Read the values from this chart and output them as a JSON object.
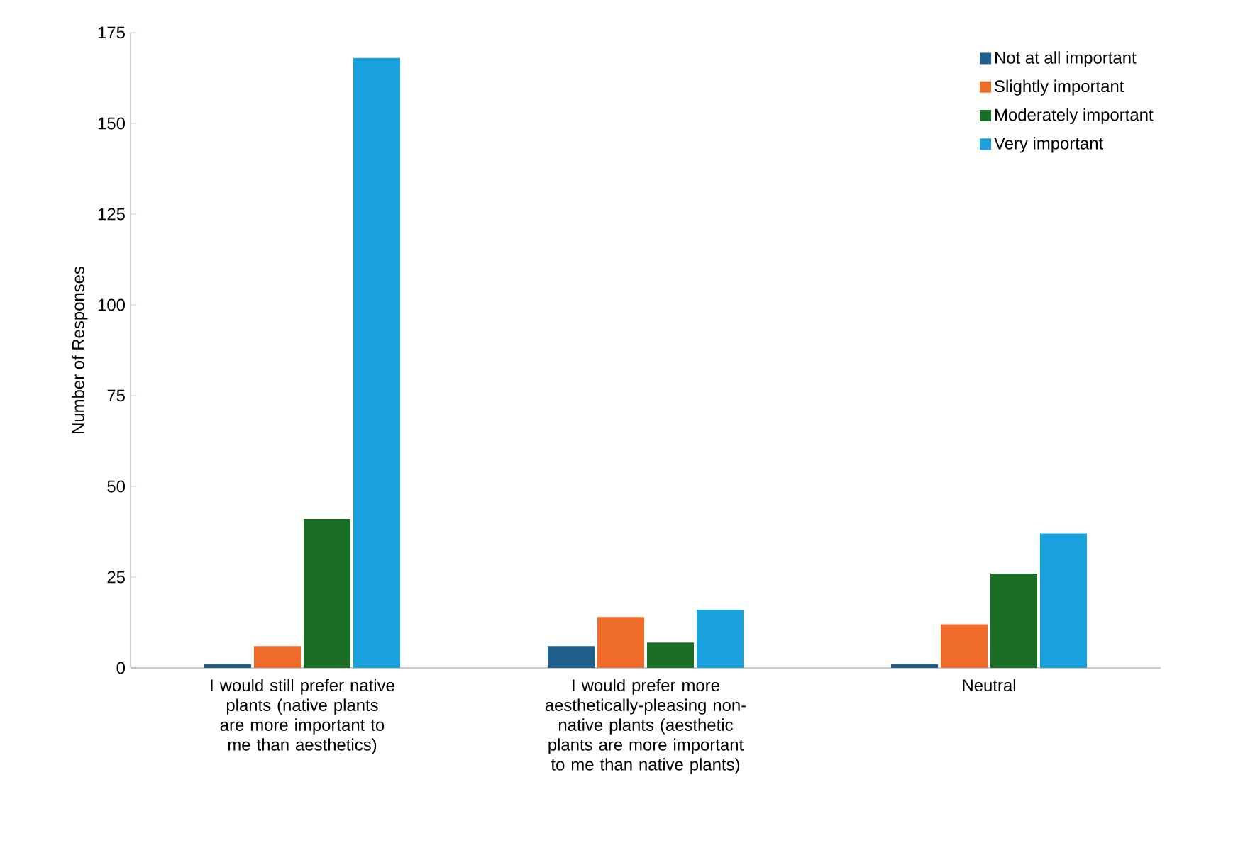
{
  "chart_data": {
    "type": "bar",
    "ylabel": "Number of Responses",
    "categories": [
      "I would still prefer native plants (native plants are more important to me than aesthetics)",
      "I would prefer more aesthetically-pleasing non-native plants (aesthetic plants are more important to me than native plants)",
      "Neutral"
    ],
    "series": [
      {
        "name": "Not at all important",
        "color": "#1f5f8b",
        "values": [
          1,
          6,
          1
        ]
      },
      {
        "name": "Slightly important",
        "color": "#ee6b2a",
        "values": [
          6,
          14,
          12
        ]
      },
      {
        "name": "Moderately important",
        "color": "#1a6e25",
        "values": [
          41,
          7,
          26
        ]
      },
      {
        "name": "Very important",
        "color": "#1aa0dc",
        "values": [
          168,
          16,
          37
        ]
      }
    ],
    "ylim": [
      0,
      175
    ],
    "yticks": [
      0,
      25,
      50,
      75,
      100,
      125,
      150,
      175
    ],
    "grid": false,
    "legend": "top right"
  }
}
